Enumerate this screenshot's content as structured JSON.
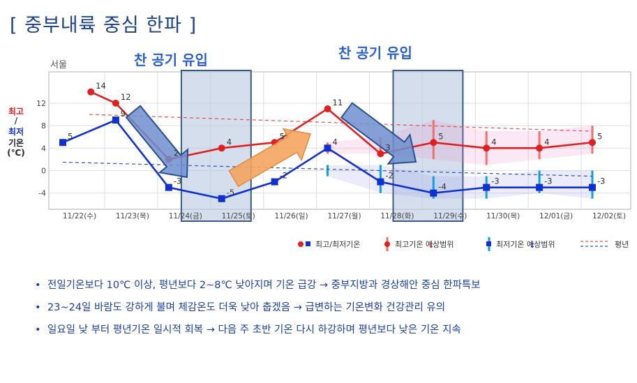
{
  "title": "[ 중부내륙 중심 한파 ]",
  "annotations": {
    "cold_air_left": "찬 공기 유입",
    "cold_air_right": "찬 공기 유입"
  },
  "colors": {
    "title": "#1a3f8f",
    "max": "#e02020",
    "min": "#1030d0",
    "max_range": "#f07070",
    "min_range": "#10a0e0",
    "arrow_down": "#6f8fcf",
    "arrow_up": "#f4a460",
    "highlight": "#b8c8e0"
  },
  "bullets": [
    "전일기온보다 10℃ 이상, 평년보다 2~8℃ 낮아지며 기온 급강 → 중부지방과 경상해안 중심 한파특보",
    "23~24일 바람도 강하게 불며 체감온도 더욱 낮아 춥겠음 → 급변하는 기온변화 건강관리 유의",
    "일요일 낮 부터 평년기온 일시적 회복 → 다음 주 초반 기온 다시 하강하며 평년보다 낮은 기온 지속"
  ],
  "chart_data": {
    "type": "line",
    "station": "서울",
    "ylabel_max": "최고",
    "ylabel_sep": "/",
    "ylabel_min": "최저",
    "ylabel_temp": "기온",
    "ylabel_unit": "(℃)",
    "yticks": [
      12,
      8,
      4,
      0,
      -4
    ],
    "ylim": [
      -7,
      17
    ],
    "categories": [
      "11/22(수)",
      "11/23(목)",
      "11/24(금)",
      "11/25(토)",
      "11/26(일)",
      "11/27(월)",
      "11/28(화)",
      "11/29(수)",
      "11/30(목)",
      "12/01(금)",
      "12/02(토)"
    ],
    "grid": true,
    "series": [
      {
        "name": "최고/최저기온",
        "key": "max",
        "values": [
          14,
          12,
          2,
          4,
          5,
          11,
          3,
          5,
          4,
          4,
          5
        ],
        "start_index": 1
      },
      {
        "name": "최고/최저기온",
        "key": "min",
        "values": [
          5,
          9,
          -3,
          -5,
          -2,
          4,
          -2,
          -4,
          -3,
          -3,
          -3
        ],
        "start_index": 0
      }
    ],
    "max_range": [
      [
        5,
        3,
        5
      ],
      [
        6,
        3,
        6
      ],
      [
        7,
        2,
        9
      ],
      [
        8,
        1,
        7
      ],
      [
        9,
        2,
        7
      ],
      [
        10,
        3,
        8
      ]
    ],
    "min_range": [
      [
        5,
        -1,
        1
      ],
      [
        6,
        -4,
        1
      ],
      [
        7,
        -5,
        -1
      ],
      [
        8,
        -5,
        -1
      ],
      [
        9,
        -4,
        0
      ],
      [
        10,
        -5,
        0
      ]
    ],
    "normal_max": [
      10,
      7
    ],
    "normal_min": [
      1.5,
      -1
    ],
    "legend": {
      "max_min": "최고/최저기온",
      "max_range": "최고기온 예상범위",
      "min_range": "최저기온 예상범위",
      "normal": "평년"
    }
  }
}
